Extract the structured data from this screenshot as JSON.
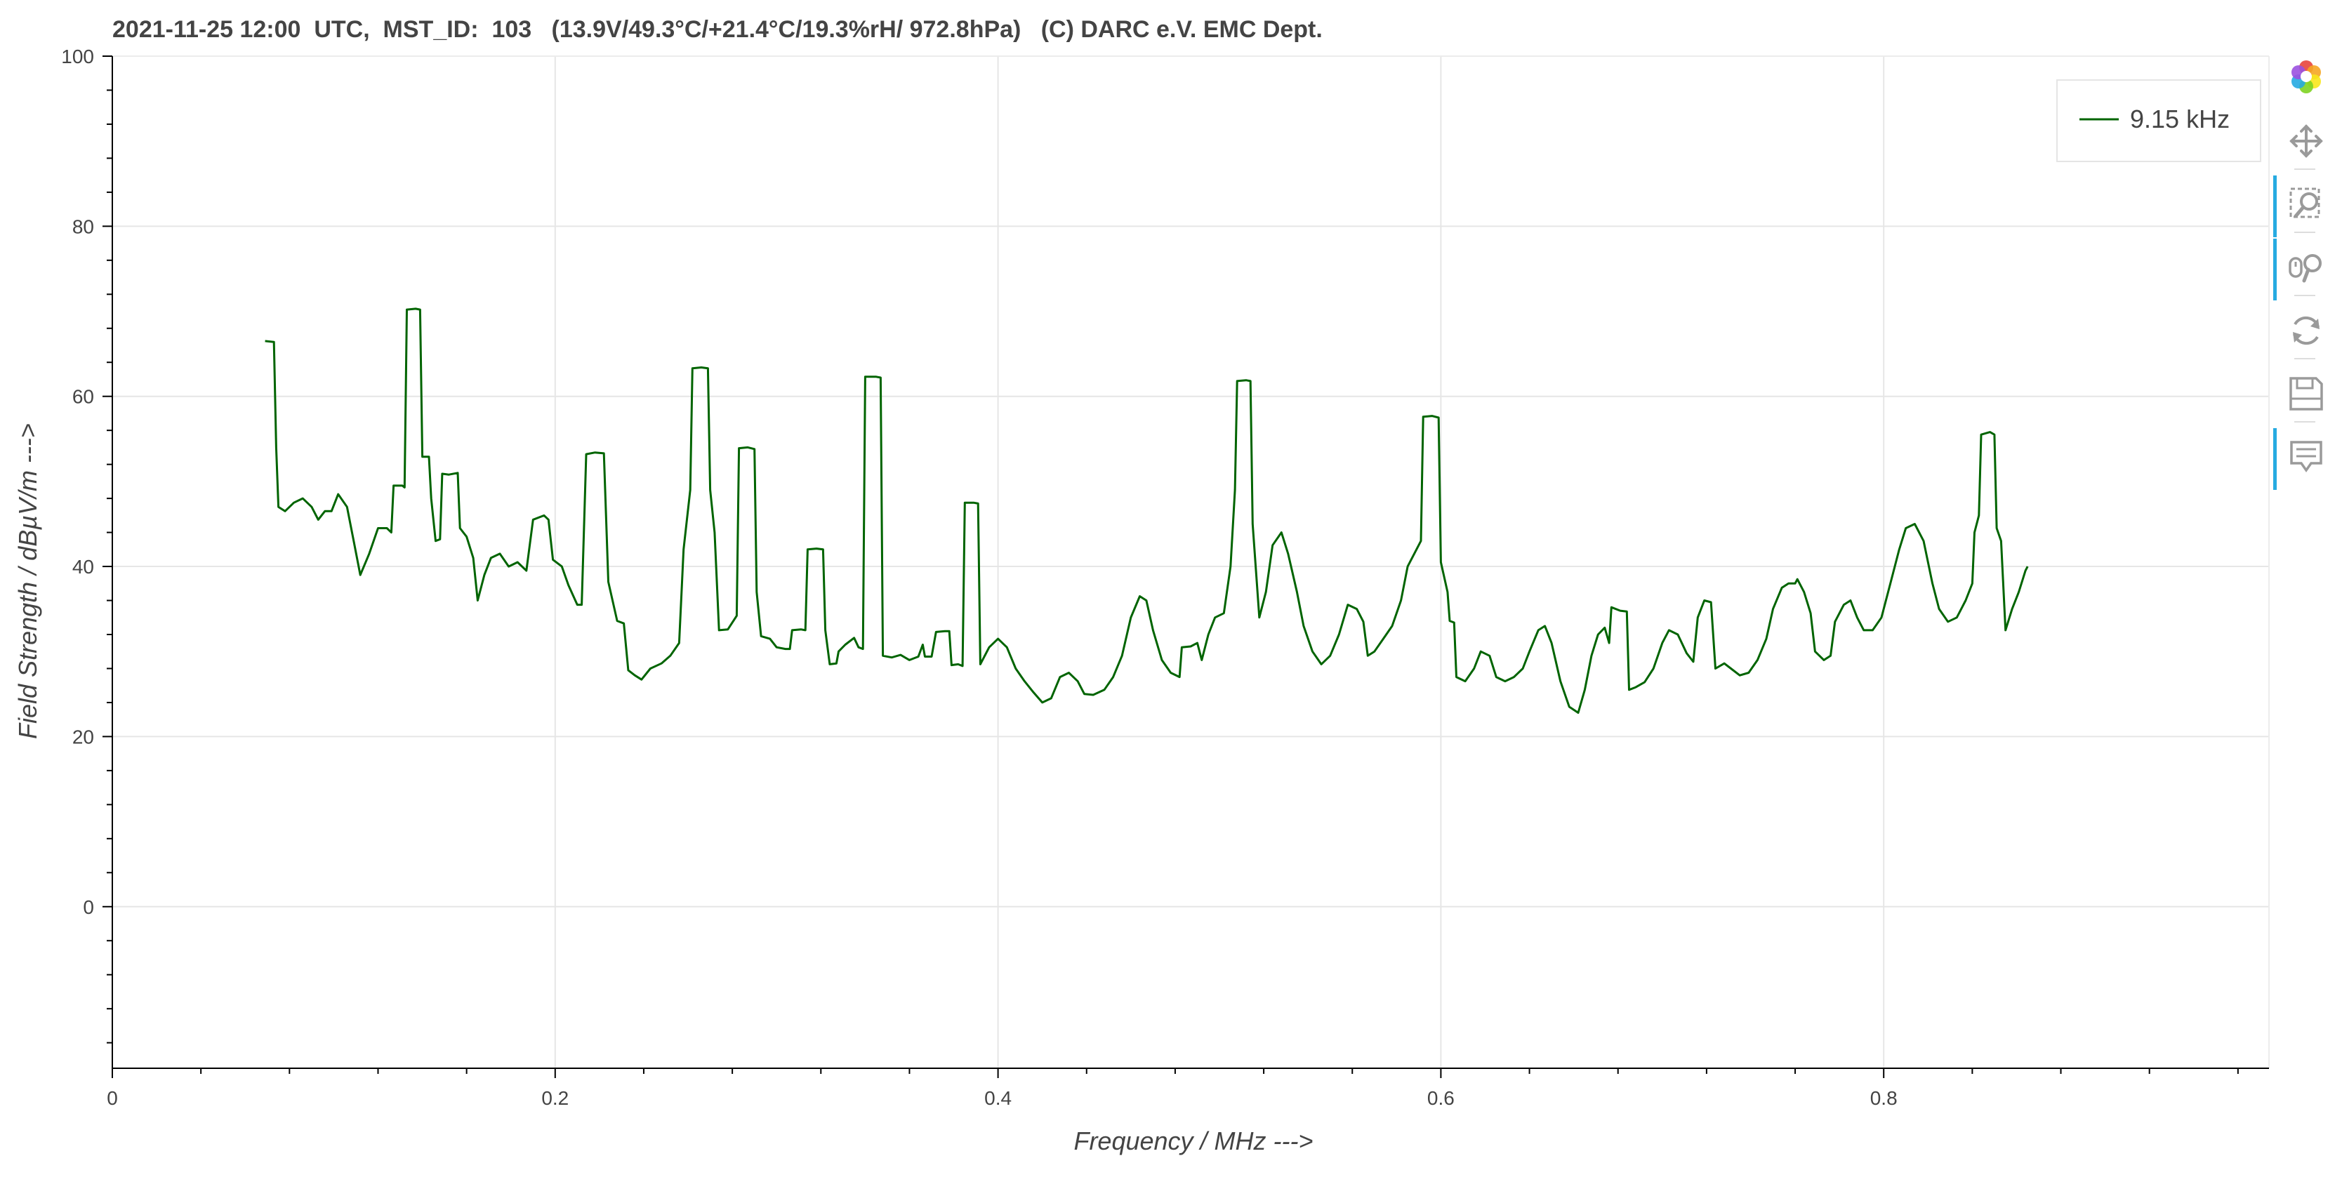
{
  "chart_data": {
    "type": "line",
    "title": "2021-11-25 12:00  UTC,  MST_ID:  103   (13.9V/49.3°C/+21.4°C/19.3%rH/ 972.8hPa)   (C) DARC e.V. EMC Dept.",
    "xlabel": "Frequency / MHz --->",
    "ylabel": "Field Strength / dBµV/m --->",
    "xlim": [
      0,
      0.974
    ],
    "ylim": [
      -19,
      100
    ],
    "x_ticks": [
      0,
      0.2,
      0.4,
      0.6,
      0.8
    ],
    "x_tick_labels": [
      "0",
      "0.2",
      "0.4",
      "0.6",
      "0.8"
    ],
    "y_ticks": [
      0,
      20,
      40,
      60,
      80,
      100
    ],
    "y_tick_labels": [
      "0",
      "20",
      "40",
      "60",
      "80",
      "100"
    ],
    "grid": true,
    "legend_position": "top-right",
    "series": [
      {
        "name": "9.15 kHz",
        "color": "#006400",
        "points": [
          [
            0.069,
            66.5
          ],
          [
            0.073,
            66.4
          ],
          [
            0.074,
            54
          ],
          [
            0.075,
            47
          ],
          [
            0.078,
            46.5
          ],
          [
            0.082,
            47.5
          ],
          [
            0.086,
            48
          ],
          [
            0.09,
            47
          ],
          [
            0.093,
            45.5
          ],
          [
            0.096,
            46.5
          ],
          [
            0.099,
            46.5
          ],
          [
            0.102,
            48.5
          ],
          [
            0.106,
            47
          ],
          [
            0.109,
            43
          ],
          [
            0.112,
            39
          ],
          [
            0.116,
            41.5
          ],
          [
            0.12,
            44.5
          ],
          [
            0.124,
            44.5
          ],
          [
            0.126,
            44
          ],
          [
            0.127,
            49.5
          ],
          [
            0.131,
            49.5
          ],
          [
            0.132,
            49.3
          ],
          [
            0.133,
            70.2
          ],
          [
            0.137,
            70.3
          ],
          [
            0.139,
            70.2
          ],
          [
            0.14,
            52.9
          ],
          [
            0.143,
            52.9
          ],
          [
            0.144,
            48
          ],
          [
            0.146,
            43
          ],
          [
            0.148,
            43.2
          ],
          [
            0.149,
            50.9
          ],
          [
            0.152,
            50.8
          ],
          [
            0.156,
            51
          ],
          [
            0.157,
            44.5
          ],
          [
            0.16,
            43.5
          ],
          [
            0.163,
            41
          ],
          [
            0.165,
            36
          ],
          [
            0.168,
            39
          ],
          [
            0.171,
            41
          ],
          [
            0.175,
            41.5
          ],
          [
            0.179,
            40
          ],
          [
            0.183,
            40.5
          ],
          [
            0.187,
            39.5
          ],
          [
            0.19,
            45.5
          ],
          [
            0.195,
            46
          ],
          [
            0.197,
            45.5
          ],
          [
            0.199,
            40.8
          ],
          [
            0.203,
            40
          ],
          [
            0.206,
            37.8
          ],
          [
            0.21,
            35.5
          ],
          [
            0.212,
            35.5
          ],
          [
            0.214,
            53.2
          ],
          [
            0.218,
            53.4
          ],
          [
            0.222,
            53.3
          ],
          [
            0.224,
            38.2
          ],
          [
            0.228,
            33.6
          ],
          [
            0.231,
            33.3
          ],
          [
            0.233,
            27.8
          ],
          [
            0.236,
            27.2
          ],
          [
            0.239,
            26.7
          ],
          [
            0.243,
            28
          ],
          [
            0.248,
            28.6
          ],
          [
            0.252,
            29.5
          ],
          [
            0.256,
            31
          ],
          [
            0.258,
            42
          ],
          [
            0.261,
            49
          ],
          [
            0.262,
            63.3
          ],
          [
            0.266,
            63.4
          ],
          [
            0.269,
            63.3
          ],
          [
            0.27,
            49
          ],
          [
            0.272,
            44
          ],
          [
            0.274,
            32.5
          ],
          [
            0.278,
            32.6
          ],
          [
            0.282,
            34.2
          ],
          [
            0.283,
            53.9
          ],
          [
            0.287,
            54
          ],
          [
            0.29,
            53.8
          ],
          [
            0.291,
            37
          ],
          [
            0.293,
            31.8
          ],
          [
            0.297,
            31.5
          ],
          [
            0.3,
            30.5
          ],
          [
            0.304,
            30.3
          ],
          [
            0.306,
            30.3
          ],
          [
            0.307,
            32.5
          ],
          [
            0.311,
            32.6
          ],
          [
            0.313,
            32.5
          ],
          [
            0.314,
            42
          ],
          [
            0.318,
            42.1
          ],
          [
            0.321,
            42
          ],
          [
            0.322,
            32.5
          ],
          [
            0.324,
            28.5
          ],
          [
            0.327,
            28.6
          ],
          [
            0.328,
            30
          ],
          [
            0.331,
            30.8
          ],
          [
            0.335,
            31.6
          ],
          [
            0.337,
            30.5
          ],
          [
            0.339,
            30.3
          ],
          [
            0.34,
            62.3
          ],
          [
            0.345,
            62.3
          ],
          [
            0.347,
            62.2
          ],
          [
            0.348,
            29.5
          ],
          [
            0.352,
            29.3
          ],
          [
            0.356,
            29.6
          ],
          [
            0.36,
            29
          ],
          [
            0.364,
            29.4
          ],
          [
            0.366,
            30.8
          ],
          [
            0.367,
            29.4
          ],
          [
            0.37,
            29.4
          ],
          [
            0.372,
            32.3
          ],
          [
            0.376,
            32.4
          ],
          [
            0.378,
            32.4
          ],
          [
            0.379,
            28.4
          ],
          [
            0.382,
            28.5
          ],
          [
            0.384,
            28.3
          ],
          [
            0.385,
            47.5
          ],
          [
            0.389,
            47.5
          ],
          [
            0.391,
            47.4
          ],
          [
            0.392,
            28.5
          ],
          [
            0.396,
            30.5
          ],
          [
            0.4,
            31.5
          ],
          [
            0.404,
            30.5
          ],
          [
            0.408,
            28
          ],
          [
            0.412,
            26.5
          ],
          [
            0.416,
            25.2
          ],
          [
            0.42,
            24
          ],
          [
            0.424,
            24.5
          ],
          [
            0.428,
            27
          ],
          [
            0.432,
            27.5
          ],
          [
            0.436,
            26.5
          ],
          [
            0.439,
            25
          ],
          [
            0.443,
            24.9
          ],
          [
            0.448,
            25.5
          ],
          [
            0.452,
            27
          ],
          [
            0.456,
            29.5
          ],
          [
            0.46,
            34
          ],
          [
            0.464,
            36.5
          ],
          [
            0.467,
            36
          ],
          [
            0.47,
            32.5
          ],
          [
            0.474,
            29
          ],
          [
            0.478,
            27.5
          ],
          [
            0.482,
            27
          ],
          [
            0.483,
            30.5
          ],
          [
            0.487,
            30.6
          ],
          [
            0.49,
            31
          ],
          [
            0.492,
            29
          ],
          [
            0.495,
            32
          ],
          [
            0.498,
            34
          ],
          [
            0.502,
            34.5
          ],
          [
            0.505,
            40
          ],
          [
            0.507,
            49
          ],
          [
            0.508,
            61.8
          ],
          [
            0.512,
            61.9
          ],
          [
            0.514,
            61.8
          ],
          [
            0.515,
            45
          ],
          [
            0.518,
            34
          ],
          [
            0.521,
            37
          ],
          [
            0.524,
            42.5
          ],
          [
            0.528,
            44
          ],
          [
            0.531,
            41.5
          ],
          [
            0.535,
            37
          ],
          [
            0.538,
            33
          ],
          [
            0.542,
            30
          ],
          [
            0.546,
            28.5
          ],
          [
            0.55,
            29.5
          ],
          [
            0.554,
            32
          ],
          [
            0.558,
            35.5
          ],
          [
            0.562,
            35
          ],
          [
            0.565,
            33.5
          ],
          [
            0.567,
            29.5
          ],
          [
            0.57,
            30
          ],
          [
            0.574,
            31.5
          ],
          [
            0.578,
            33
          ],
          [
            0.582,
            36
          ],
          [
            0.585,
            40
          ],
          [
            0.589,
            42
          ],
          [
            0.591,
            43
          ],
          [
            0.592,
            57.6
          ],
          [
            0.596,
            57.7
          ],
          [
            0.599,
            57.5
          ],
          [
            0.6,
            40.5
          ],
          [
            0.603,
            37
          ],
          [
            0.604,
            33.6
          ],
          [
            0.606,
            33.4
          ],
          [
            0.607,
            27
          ],
          [
            0.611,
            26.5
          ],
          [
            0.615,
            28
          ],
          [
            0.618,
            30
          ],
          [
            0.622,
            29.5
          ],
          [
            0.625,
            27
          ],
          [
            0.629,
            26.5
          ],
          [
            0.633,
            27
          ],
          [
            0.637,
            28
          ],
          [
            0.64,
            30
          ],
          [
            0.644,
            32.5
          ],
          [
            0.647,
            33
          ],
          [
            0.65,
            31
          ],
          [
            0.654,
            26.5
          ],
          [
            0.658,
            23.5
          ],
          [
            0.662,
            22.8
          ],
          [
            0.665,
            25.5
          ],
          [
            0.668,
            29.5
          ],
          [
            0.671,
            32
          ],
          [
            0.674,
            32.8
          ],
          [
            0.676,
            31
          ],
          [
            0.677,
            35.2
          ],
          [
            0.681,
            34.8
          ],
          [
            0.684,
            34.7
          ],
          [
            0.685,
            25.5
          ],
          [
            0.688,
            25.8
          ],
          [
            0.692,
            26.4
          ],
          [
            0.696,
            28
          ],
          [
            0.7,
            31
          ],
          [
            0.703,
            32.5
          ],
          [
            0.707,
            32
          ],
          [
            0.711,
            29.8
          ],
          [
            0.714,
            28.8
          ],
          [
            0.716,
            34
          ],
          [
            0.719,
            36
          ],
          [
            0.722,
            35.8
          ],
          [
            0.724,
            28
          ],
          [
            0.728,
            28.6
          ],
          [
            0.731,
            28
          ],
          [
            0.735,
            27.2
          ],
          [
            0.739,
            27.5
          ],
          [
            0.743,
            29
          ],
          [
            0.747,
            31.5
          ],
          [
            0.75,
            35
          ],
          [
            0.754,
            37.5
          ],
          [
            0.757,
            38
          ],
          [
            0.76,
            38
          ],
          [
            0.761,
            38.5
          ],
          [
            0.764,
            37
          ],
          [
            0.767,
            34.5
          ],
          [
            0.769,
            30
          ],
          [
            0.773,
            29
          ],
          [
            0.776,
            29.5
          ],
          [
            0.778,
            33.5
          ],
          [
            0.782,
            35.5
          ],
          [
            0.785,
            36
          ],
          [
            0.788,
            34
          ],
          [
            0.791,
            32.5
          ],
          [
            0.795,
            32.5
          ],
          [
            0.799,
            34
          ],
          [
            0.803,
            38
          ],
          [
            0.807,
            42
          ],
          [
            0.81,
            44.5
          ],
          [
            0.814,
            45
          ],
          [
            0.818,
            43
          ],
          [
            0.822,
            38
          ],
          [
            0.825,
            35
          ],
          [
            0.829,
            33.5
          ],
          [
            0.833,
            34
          ],
          [
            0.837,
            36
          ],
          [
            0.84,
            38
          ],
          [
            0.841,
            44
          ],
          [
            0.843,
            46
          ],
          [
            0.844,
            55.5
          ],
          [
            0.848,
            55.8
          ],
          [
            0.85,
            55.5
          ],
          [
            0.851,
            44.5
          ],
          [
            0.853,
            43
          ],
          [
            0.855,
            32.5
          ],
          [
            0.858,
            35
          ],
          [
            0.861,
            37
          ],
          [
            0.864,
            39.5
          ],
          [
            0.865,
            40
          ]
        ]
      }
    ]
  },
  "legend": {
    "label": "9.15 kHz"
  },
  "toolbar": {
    "tools": [
      {
        "icon": "bokeh-logo-icon",
        "active": false
      },
      {
        "icon": "pan-icon",
        "active": false
      },
      {
        "icon": "box-zoom-icon",
        "active": true
      },
      {
        "icon": "wheel-zoom-icon",
        "active": true
      },
      {
        "icon": "reset-icon",
        "active": false
      },
      {
        "icon": "save-icon",
        "active": false
      },
      {
        "icon": "hover-icon",
        "active": true
      }
    ]
  }
}
